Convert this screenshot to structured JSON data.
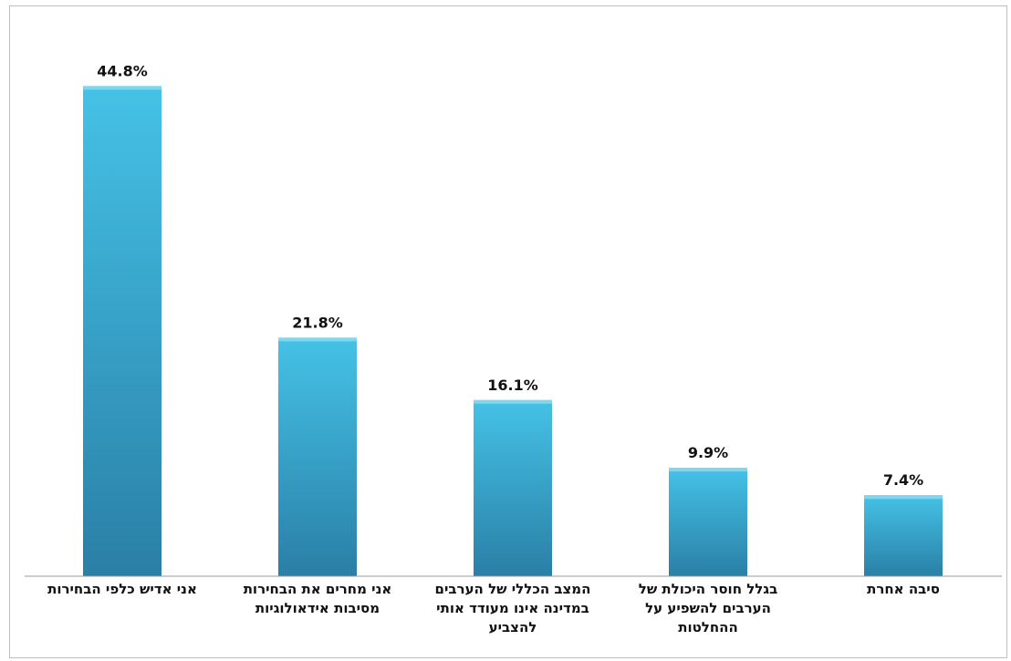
{
  "chart_data": {
    "type": "bar",
    "categories": [
      "אני אדיש כלפי הבחירות",
      "אני מחרים את הבחירות\nמסיבות אידאולוגיות",
      "המצב הכללי של הערבים\nבמדינה אינו מעודד אותי\nלהצביע",
      "בגלל חוסר היכולת של\nהערבים להשפיע על\nההחלטות",
      "סיבה אחרת"
    ],
    "values": [
      44.8,
      21.8,
      16.1,
      9.9,
      7.4
    ],
    "value_labels": [
      "44.8%",
      "21.8%",
      "16.1%",
      "9.9%",
      "7.4%"
    ],
    "ylim": [
      0,
      50
    ],
    "grid": false,
    "legend": "none",
    "colors": {
      "bar_light": "#45c2e6",
      "bar_dark": "#2a7fa6",
      "bar_top": "#7fd6ef"
    }
  }
}
